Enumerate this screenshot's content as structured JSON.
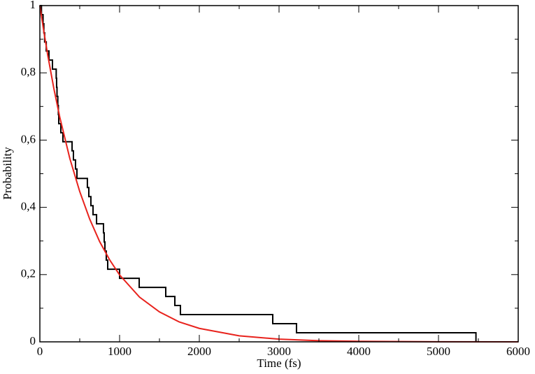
{
  "chart_data": {
    "type": "line",
    "xlabel": "Time (fs)",
    "ylabel": "Probability",
    "xlim": [
      0,
      6000
    ],
    "ylim": [
      0,
      1
    ],
    "xticks": [
      0,
      1000,
      2000,
      3000,
      4000,
      5000,
      6000
    ],
    "xminorticks": [
      500,
      1500,
      2500,
      3500,
      4500,
      5500
    ],
    "yticks": [
      0,
      {
        "value": 0.2,
        "label": "0,2"
      },
      {
        "value": 0.4,
        "label": "0,4"
      },
      {
        "value": 0.6,
        "label": "0,6"
      },
      {
        "value": 0.8,
        "label": "0,8"
      },
      1
    ],
    "yminorticks": [
      0.1,
      0.3,
      0.5,
      0.7,
      0.9
    ],
    "series": [
      {
        "color": "#000000",
        "step": "post",
        "x": [
          0,
          20,
          40,
          50,
          60,
          80,
          114,
          158,
          205,
          210,
          215,
          225,
          232,
          237,
          263,
          289,
          404,
          421,
          447,
          465,
          596,
          614,
          640,
          667,
          711,
          798,
          807,
          816,
          833,
          851,
          1000,
          1246,
          1579,
          1693,
          1763,
          2921,
          3219,
          5470
        ],
        "values": [
          1,
          0.973,
          0.946,
          0.919,
          0.892,
          0.865,
          0.838,
          0.811,
          0.784,
          0.757,
          0.73,
          0.703,
          0.676,
          0.649,
          0.622,
          0.595,
          0.568,
          0.541,
          0.514,
          0.486,
          0.459,
          0.432,
          0.405,
          0.378,
          0.351,
          0.324,
          0.297,
          0.27,
          0.243,
          0.216,
          0.189,
          0.162,
          0.135,
          0.108,
          0.081,
          0.054,
          0.027,
          0
        ]
      },
      {
        "color": "#e8221c",
        "x": [
          0,
          50,
          100,
          175,
          250,
          375,
          500,
          625,
          750,
          875,
          1000,
          1250,
          1500,
          1750,
          2000,
          2500,
          3000,
          3500,
          4000,
          5000,
          6000
        ],
        "values": [
          1,
          0.923,
          0.851,
          0.754,
          0.668,
          0.546,
          0.447,
          0.365,
          0.298,
          0.244,
          0.199,
          0.133,
          0.089,
          0.059,
          0.04,
          0.018,
          0.008,
          0.0035,
          0.0016,
          0.0003,
          0
        ]
      }
    ]
  }
}
